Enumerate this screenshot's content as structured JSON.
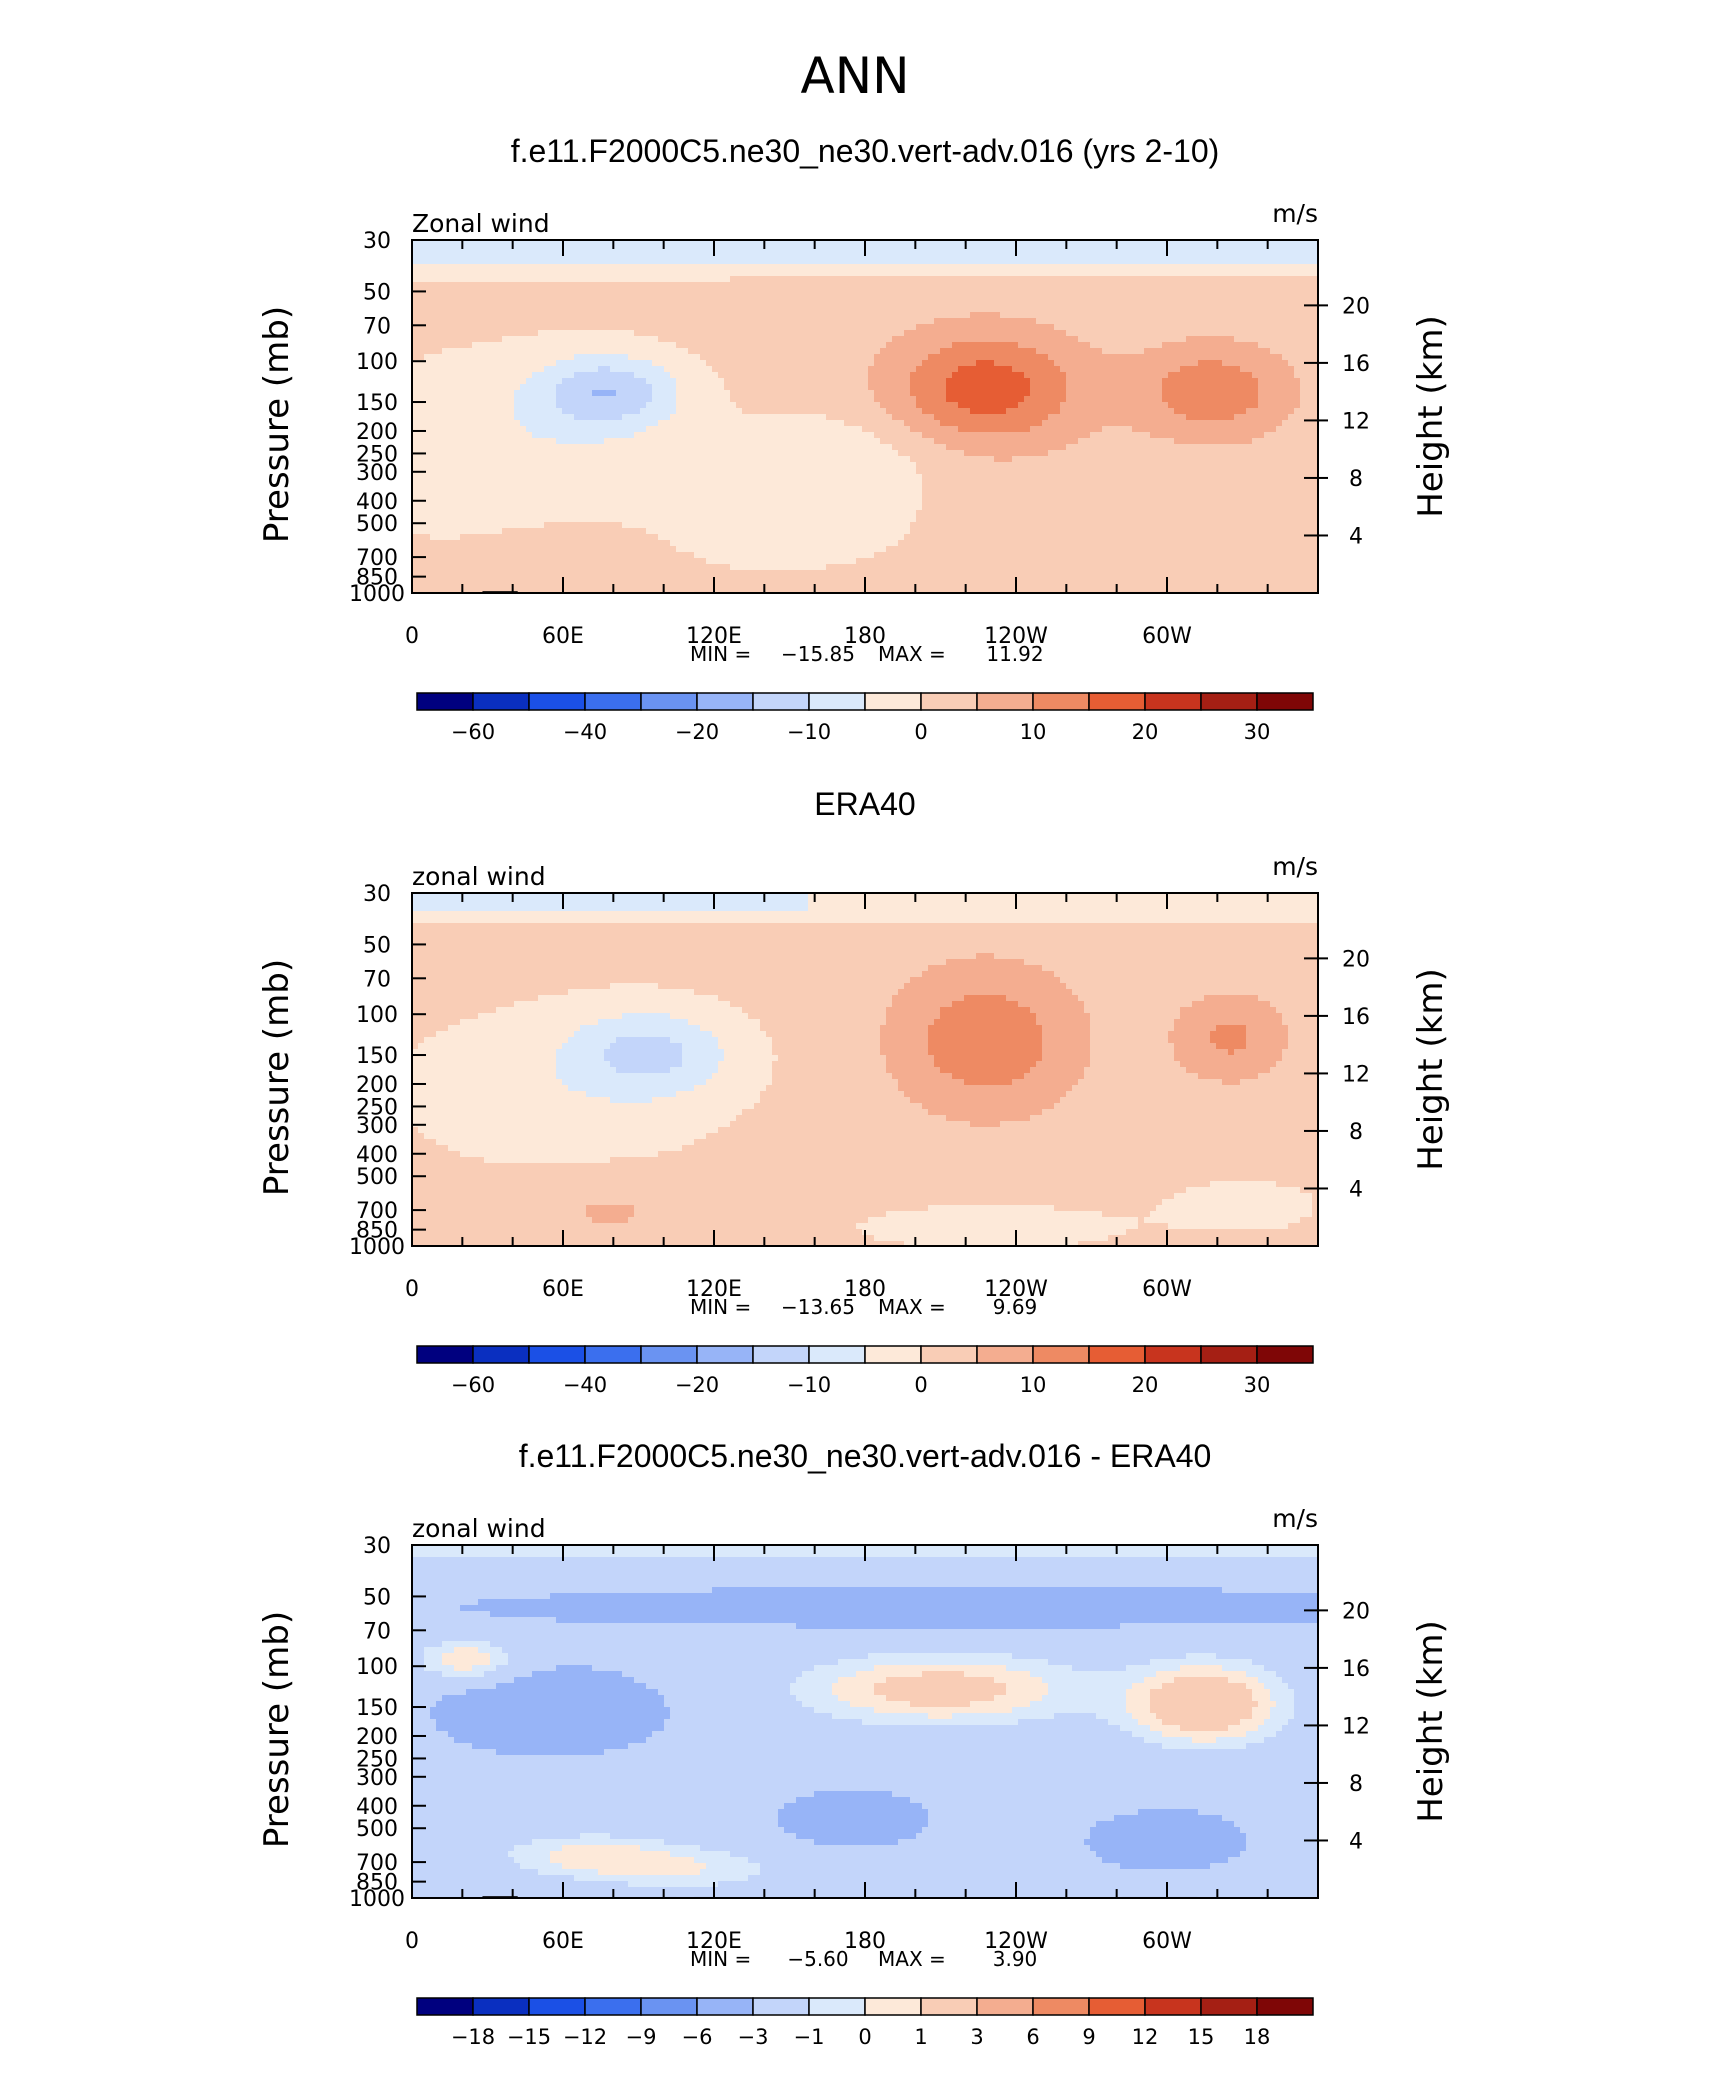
{
  "main_title": "ANN",
  "chart_data": [
    {
      "type": "heatmap",
      "title": "f.e11.F2000C5.ne30_ne30.vert-adv.016 (yrs 2-10)",
      "left_label": "Zonal wind",
      "units_label": "m/s",
      "ylabel": "Pressure (mb)",
      "ylabel_right": "Height (km)",
      "x_ticks": [
        "0",
        "60E",
        "120E",
        "180",
        "120W",
        "60W"
      ],
      "y_ticks": [
        "30",
        "50",
        "70",
        "100",
        "150",
        "200",
        "250",
        "300",
        "400",
        "500",
        "700",
        "850",
        "1000"
      ],
      "y_ticks_right": [
        "20",
        "16",
        "12",
        "8",
        "4"
      ],
      "min_label": "MIN =",
      "min_value": "−15.85",
      "max_label": "MAX =",
      "max_value": "11.92",
      "colorbar_labels": [
        "−60",
        "−40",
        "−20",
        "−10",
        "0",
        "10",
        "20",
        "30"
      ],
      "contour_levels": [
        -70,
        -60,
        -50,
        -40,
        -30,
        -20,
        -15,
        -10,
        -5,
        0,
        5,
        10,
        15,
        20,
        25,
        30,
        40
      ],
      "palette": [
        "#00007f",
        "#0a2fc0",
        "#1b50e6",
        "#3b6fee",
        "#6a93f2",
        "#97b4f7",
        "#c3d5fa",
        "#dae9fb",
        "#fde9d9",
        "#f9cdb6",
        "#f4ad90",
        "#ee8a63",
        "#e65d34",
        "#c8341e",
        "#a51f14",
        "#7f0606"
      ],
      "mountains": true,
      "mode": "model"
    },
    {
      "type": "heatmap",
      "title": "ERA40",
      "left_label": "zonal wind",
      "units_label": "m/s",
      "ylabel": "Pressure (mb)",
      "ylabel_right": "Height (km)",
      "x_ticks": [
        "0",
        "60E",
        "120E",
        "180",
        "120W",
        "60W"
      ],
      "y_ticks": [
        "30",
        "50",
        "70",
        "100",
        "150",
        "200",
        "250",
        "300",
        "400",
        "500",
        "700",
        "850",
        "1000"
      ],
      "y_ticks_right": [
        "20",
        "16",
        "12",
        "8",
        "4"
      ],
      "min_label": "MIN =",
      "min_value": "−13.65",
      "max_label": "MAX =",
      "max_value": "9.69",
      "colorbar_labels": [
        "−60",
        "−40",
        "−20",
        "−10",
        "0",
        "10",
        "20",
        "30"
      ],
      "contour_levels": [
        -70,
        -60,
        -50,
        -40,
        -30,
        -20,
        -15,
        -10,
        -5,
        0,
        5,
        10,
        15,
        20,
        25,
        30,
        40
      ],
      "palette": [
        "#00007f",
        "#0a2fc0",
        "#1b50e6",
        "#3b6fee",
        "#6a93f2",
        "#97b4f7",
        "#c3d5fa",
        "#dae9fb",
        "#fde9d9",
        "#f9cdb6",
        "#f4ad90",
        "#ee8a63",
        "#e65d34",
        "#c8341e",
        "#a51f14",
        "#7f0606"
      ],
      "mountains": false,
      "mode": "obs"
    },
    {
      "type": "heatmap",
      "title": "f.e11.F2000C5.ne30_ne30.vert-adv.016 - ERA40",
      "left_label": "zonal wind",
      "units_label": "m/s",
      "ylabel": "Pressure (mb)",
      "ylabel_right": "Height (km)",
      "x_ticks": [
        "0",
        "60E",
        "120E",
        "180",
        "120W",
        "60W"
      ],
      "y_ticks": [
        "30",
        "50",
        "70",
        "100",
        "150",
        "200",
        "250",
        "300",
        "400",
        "500",
        "700",
        "850",
        "1000"
      ],
      "y_ticks_right": [
        "20",
        "16",
        "12",
        "8",
        "4"
      ],
      "min_label": "MIN =",
      "min_value": "−5.60",
      "max_label": "MAX =",
      "max_value": "3.90",
      "colorbar_labels": [
        "−18",
        "−15",
        "−12",
        "−9",
        "−6",
        "−3",
        "−1",
        "0",
        "1",
        "3",
        "6",
        "9",
        "12",
        "15",
        "18"
      ],
      "contour_levels": [
        -21,
        -18,
        -15,
        -12,
        -9,
        -6,
        -3,
        -1,
        0,
        1,
        3,
        6,
        9,
        12,
        15,
        18,
        21
      ],
      "palette": [
        "#00007f",
        "#0a2fc0",
        "#1b50e6",
        "#3b6fee",
        "#6a93f2",
        "#97b4f7",
        "#c3d5fa",
        "#dae9fb",
        "#fde9d9",
        "#f9cdb6",
        "#f4ad90",
        "#ee8a63",
        "#e65d34",
        "#c8341e",
        "#a51f14",
        "#7f0606"
      ],
      "mountains": true,
      "mode": "diff"
    }
  ]
}
